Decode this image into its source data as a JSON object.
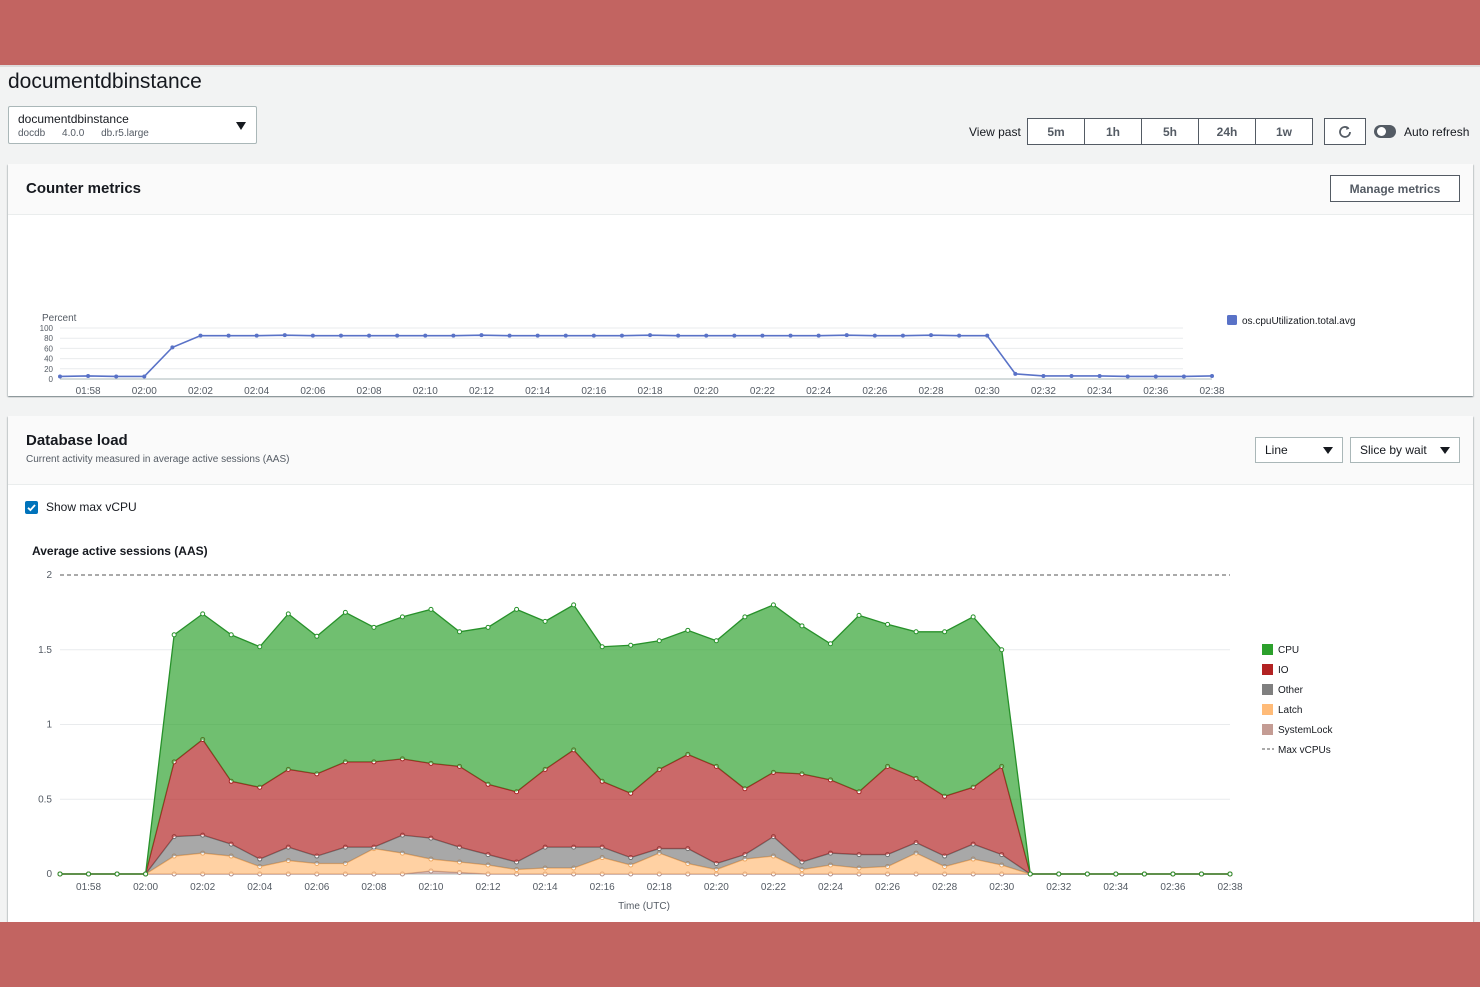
{
  "page": {
    "title": "documentdbinstance"
  },
  "instance": {
    "name": "documentdbinstance",
    "engine": "docdb",
    "version": "4.0.0",
    "class": "db.r5.large"
  },
  "toolbar": {
    "view_past_label": "View past",
    "ranges": [
      "5m",
      "1h",
      "5h",
      "24h",
      "1w"
    ],
    "auto_refresh_label": "Auto refresh"
  },
  "counter": {
    "title": "Counter metrics",
    "manage_label": "Manage metrics"
  },
  "dbload": {
    "title": "Database load",
    "subtitle": "Current activity measured in average active sessions (AAS)",
    "view_select": "Line",
    "slice_select": "Slice by wait",
    "show_vcpu_label": "Show max vCPU"
  },
  "colors": {
    "cpu_line": "#5972c7",
    "cpu": "#2ca02c",
    "io": "#b22222",
    "other": "#7f7f7f",
    "latch": "#ffbb78",
    "systemlock": "#c49c94"
  },
  "chart_data": [
    {
      "type": "line",
      "ylabel": "Percent",
      "xlabel": "Time (UTC)",
      "ylim": [
        0,
        100
      ],
      "yticks": [
        0,
        20,
        40,
        60,
        80,
        100
      ],
      "xticks": [
        "01:58",
        "02:00",
        "02:02",
        "02:04",
        "02:06",
        "02:08",
        "02:10",
        "02:12",
        "02:14",
        "02:16",
        "02:18",
        "02:20",
        "02:22",
        "02:24",
        "02:26",
        "02:28",
        "02:30",
        "02:32",
        "02:34",
        "02:36",
        "02:38"
      ],
      "x": [
        "01:57",
        "01:58",
        "01:59",
        "02:00",
        "02:01",
        "02:02",
        "02:03",
        "02:04",
        "02:05",
        "02:06",
        "02:07",
        "02:08",
        "02:09",
        "02:10",
        "02:11",
        "02:12",
        "02:13",
        "02:14",
        "02:15",
        "02:16",
        "02:17",
        "02:18",
        "02:19",
        "02:20",
        "02:21",
        "02:22",
        "02:23",
        "02:24",
        "02:25",
        "02:26",
        "02:27",
        "02:28",
        "02:29",
        "02:30",
        "02:31",
        "02:32",
        "02:33",
        "02:34",
        "02:35",
        "02:36",
        "02:37",
        "02:38"
      ],
      "legend_position": "right",
      "grid": true,
      "series": [
        {
          "name": "os.cpuUtilization.total.avg",
          "values": [
            5,
            6,
            5,
            5,
            62,
            85,
            85,
            85,
            86,
            85,
            85,
            85,
            85,
            85,
            85,
            86,
            85,
            85,
            85,
            85,
            85,
            86,
            85,
            85,
            85,
            85,
            85,
            85,
            86,
            85,
            85,
            86,
            85,
            85,
            10,
            6,
            6,
            6,
            5,
            5,
            5,
            6
          ]
        }
      ]
    },
    {
      "type": "area",
      "title": "Average active sessions (AAS)",
      "xlabel": "Time (UTC)",
      "ylim": [
        0,
        2
      ],
      "yticks": [
        "0",
        "0.5",
        "1",
        "1.5",
        "2"
      ],
      "xticks": [
        "01:58",
        "02:00",
        "02:02",
        "02:04",
        "02:06",
        "02:08",
        "02:10",
        "02:12",
        "02:14",
        "02:16",
        "02:18",
        "02:20",
        "02:22",
        "02:24",
        "02:26",
        "02:28",
        "02:30",
        "02:32",
        "02:34",
        "02:36",
        "02:38"
      ],
      "x": [
        "01:57",
        "01:58",
        "01:59",
        "02:00",
        "02:01",
        "02:02",
        "02:03",
        "02:04",
        "02:05",
        "02:06",
        "02:07",
        "02:08",
        "02:09",
        "02:10",
        "02:11",
        "02:12",
        "02:13",
        "02:14",
        "02:15",
        "02:16",
        "02:17",
        "02:18",
        "02:19",
        "02:20",
        "02:21",
        "02:22",
        "02:23",
        "02:24",
        "02:25",
        "02:26",
        "02:27",
        "02:28",
        "02:29",
        "02:30",
        "02:31",
        "02:32",
        "02:33",
        "02:34",
        "02:35",
        "02:36",
        "02:37",
        "02:38"
      ],
      "stacked": true,
      "legend_position": "right",
      "grid": true,
      "max_vcpu": 2,
      "series": [
        {
          "name": "SystemLock",
          "values": [
            0,
            0,
            0,
            0,
            0,
            0,
            0,
            0,
            0,
            0,
            0,
            0,
            0,
            0.02,
            0.01,
            0,
            0,
            0,
            0,
            0,
            0,
            0,
            0,
            0,
            0,
            0,
            0,
            0,
            0,
            0,
            0,
            0,
            0,
            0,
            0,
            0,
            0,
            0,
            0,
            0,
            0,
            0
          ]
        },
        {
          "name": "Latch",
          "values": [
            0,
            0,
            0,
            0,
            0.12,
            0.14,
            0.12,
            0.05,
            0.09,
            0.07,
            0.07,
            0.17,
            0.14,
            0.08,
            0.07,
            0.06,
            0.03,
            0.04,
            0.04,
            0.11,
            0.06,
            0.14,
            0.07,
            0.03,
            0.1,
            0.12,
            0.03,
            0.06,
            0.04,
            0.05,
            0.14,
            0.05,
            0.1,
            0.06,
            0,
            0,
            0,
            0,
            0,
            0,
            0,
            0
          ]
        },
        {
          "name": "Other",
          "values": [
            0,
            0,
            0,
            0,
            0.13,
            0.12,
            0.08,
            0.05,
            0.09,
            0.05,
            0.11,
            0.01,
            0.12,
            0.14,
            0.1,
            0.07,
            0.05,
            0.14,
            0.14,
            0.07,
            0.05,
            0.03,
            0.1,
            0.04,
            0.03,
            0.13,
            0.05,
            0.08,
            0.09,
            0.08,
            0.07,
            0.07,
            0.1,
            0.07,
            0,
            0,
            0,
            0,
            0,
            0,
            0,
            0
          ]
        },
        {
          "name": "IO",
          "values": [
            0,
            0,
            0,
            0,
            0.5,
            0.64,
            0.42,
            0.48,
            0.52,
            0.55,
            0.57,
            0.57,
            0.51,
            0.5,
            0.54,
            0.47,
            0.47,
            0.52,
            0.65,
            0.44,
            0.43,
            0.53,
            0.63,
            0.65,
            0.44,
            0.43,
            0.59,
            0.49,
            0.42,
            0.59,
            0.43,
            0.4,
            0.38,
            0.59,
            0,
            0,
            0,
            0,
            0,
            0,
            0,
            0
          ]
        },
        {
          "name": "CPU",
          "values": [
            0,
            0,
            0,
            0,
            0.85,
            0.84,
            0.98,
            0.94,
            1.04,
            0.92,
            1.0,
            0.9,
            0.95,
            1.03,
            0.9,
            1.05,
            1.22,
            0.99,
            0.97,
            0.9,
            0.99,
            0.86,
            0.83,
            0.84,
            1.15,
            1.12,
            0.99,
            0.91,
            1.18,
            0.95,
            0.98,
            1.1,
            1.14,
            0.78,
            0,
            0,
            0,
            0,
            0,
            0,
            0,
            0
          ]
        }
      ]
    }
  ]
}
